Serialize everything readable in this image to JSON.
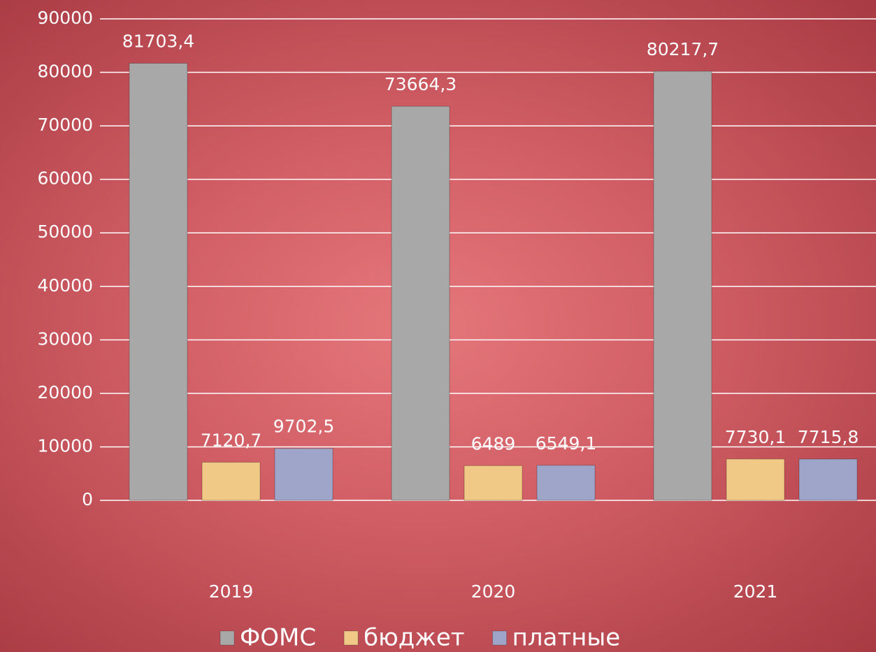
{
  "chart_data": {
    "type": "bar",
    "categories": [
      "2019",
      "2020",
      "2021"
    ],
    "series": [
      {
        "name": "ФОМС",
        "color": "#a8a8a8",
        "values": [
          81703.4,
          73664.3,
          80217.7
        ],
        "value_labels": [
          "81703,4",
          "73664,3",
          "80217,7"
        ]
      },
      {
        "name": "бюджет",
        "color": "#efc985",
        "values": [
          7120.7,
          6489,
          7730.1
        ],
        "value_labels": [
          "7120,7",
          "6489",
          "7730,1"
        ]
      },
      {
        "name": "платные",
        "color": "#9ea5c9",
        "values": [
          9702.5,
          6549.1,
          7715.8
        ],
        "value_labels": [
          "9702,5",
          "6549,1",
          "7715,8"
        ]
      }
    ],
    "ylim": [
      0,
      90000
    ],
    "yticks": [
      0,
      10000,
      20000,
      30000,
      40000,
      50000,
      60000,
      70000,
      80000,
      90000
    ],
    "grid": true,
    "legend": "bottom"
  }
}
